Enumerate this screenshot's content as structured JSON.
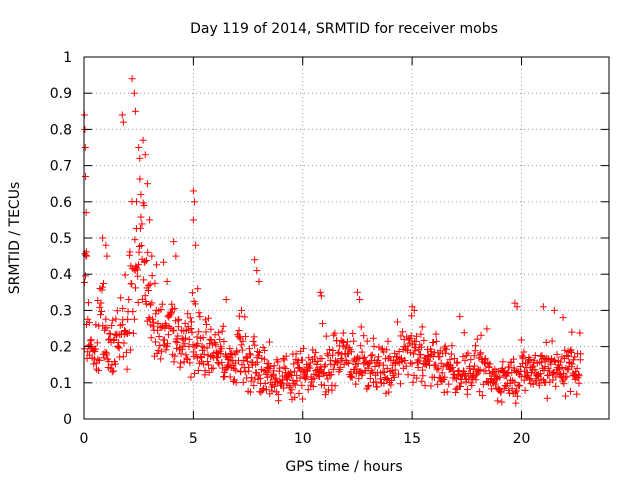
{
  "chart_data": {
    "type": "scatter",
    "title": "Day 119 of 2014, SRMTID for receiver mobs",
    "xlabel": "GPS time / hours",
    "ylabel": "SRMTID / TECUs",
    "xlim": [
      0,
      24
    ],
    "ylim": [
      0,
      1
    ],
    "xticks": [
      0,
      5,
      10,
      15,
      20
    ],
    "yticks": [
      0,
      0.1,
      0.2,
      0.3,
      0.4,
      0.5,
      0.6,
      0.7,
      0.8,
      0.9,
      1
    ],
    "xtick_labels": [
      "0",
      "5",
      "10",
      "15",
      "20"
    ],
    "ytick_labels": [
      "0",
      "0.1",
      "0.2",
      "0.3",
      "0.4",
      "0.5",
      "0.6",
      "0.7",
      "0.8",
      "0.9",
      "1"
    ],
    "grid": true,
    "marker": "+",
    "color": "#ff0000",
    "x_data_end": 22.7,
    "series": [
      {
        "name": "SRMTID",
        "envelope": [
          [
            0.0,
            0.15,
            0.06
          ],
          [
            0.05,
            0.6,
            0.2
          ],
          [
            0.15,
            0.22,
            0.06
          ],
          [
            0.4,
            0.16,
            0.04
          ],
          [
            0.8,
            0.3,
            0.12
          ],
          [
            1.2,
            0.2,
            0.06
          ],
          [
            1.7,
            0.22,
            0.06
          ],
          [
            2.2,
            0.35,
            0.15
          ],
          [
            2.6,
            0.5,
            0.18
          ],
          [
            3.0,
            0.3,
            0.08
          ],
          [
            3.5,
            0.25,
            0.06
          ],
          [
            4.0,
            0.24,
            0.06
          ],
          [
            4.5,
            0.2,
            0.06
          ],
          [
            5.0,
            0.22,
            0.08
          ],
          [
            5.5,
            0.18,
            0.05
          ],
          [
            6.0,
            0.18,
            0.05
          ],
          [
            6.5,
            0.15,
            0.05
          ],
          [
            7.0,
            0.17,
            0.06
          ],
          [
            7.8,
            0.15,
            0.06
          ],
          [
            8.5,
            0.12,
            0.04
          ],
          [
            9.0,
            0.11,
            0.04
          ],
          [
            10.0,
            0.13,
            0.05
          ],
          [
            11.0,
            0.14,
            0.05
          ],
          [
            12.0,
            0.17,
            0.05
          ],
          [
            13.0,
            0.14,
            0.05
          ],
          [
            14.0,
            0.13,
            0.05
          ],
          [
            15.0,
            0.19,
            0.06
          ],
          [
            16.0,
            0.15,
            0.05
          ],
          [
            17.0,
            0.13,
            0.05
          ],
          [
            18.0,
            0.14,
            0.05
          ],
          [
            19.0,
            0.1,
            0.04
          ],
          [
            20.0,
            0.13,
            0.05
          ],
          [
            21.0,
            0.14,
            0.05
          ],
          [
            22.0,
            0.14,
            0.05
          ],
          [
            22.7,
            0.14,
            0.05
          ]
        ],
        "spikes": [
          [
            0.02,
            0.84
          ],
          [
            0.04,
            0.8
          ],
          [
            0.06,
            0.75
          ],
          [
            0.07,
            0.67
          ],
          [
            0.1,
            0.57
          ],
          [
            0.12,
            0.45
          ],
          [
            2.2,
            0.94
          ],
          [
            2.3,
            0.9
          ],
          [
            1.75,
            0.84
          ],
          [
            1.8,
            0.82
          ],
          [
            2.35,
            0.85
          ],
          [
            2.5,
            0.75
          ],
          [
            2.55,
            0.72
          ],
          [
            2.7,
            0.77
          ],
          [
            2.8,
            0.73
          ],
          [
            2.9,
            0.65
          ],
          [
            3.0,
            0.55
          ],
          [
            2.4,
            0.6
          ],
          [
            2.6,
            0.62
          ],
          [
            3.1,
            0.45
          ],
          [
            0.85,
            0.5
          ],
          [
            1.0,
            0.48
          ],
          [
            1.05,
            0.45
          ],
          [
            5.0,
            0.63
          ],
          [
            5.05,
            0.6
          ],
          [
            5.0,
            0.55
          ],
          [
            5.1,
            0.48
          ],
          [
            4.1,
            0.49
          ],
          [
            4.2,
            0.45
          ],
          [
            5.2,
            0.36
          ],
          [
            7.8,
            0.44
          ],
          [
            7.9,
            0.41
          ],
          [
            8.0,
            0.38
          ],
          [
            10.8,
            0.35
          ],
          [
            10.85,
            0.34
          ],
          [
            12.5,
            0.35
          ],
          [
            12.6,
            0.33
          ],
          [
            15.0,
            0.31
          ],
          [
            15.1,
            0.3
          ],
          [
            19.7,
            0.32
          ],
          [
            19.8,
            0.31
          ],
          [
            21.0,
            0.31
          ],
          [
            21.5,
            0.3
          ],
          [
            21.9,
            0.28
          ],
          [
            22.3,
            0.24
          ],
          [
            6.5,
            0.33
          ],
          [
            7.2,
            0.3
          ],
          [
            3.8,
            0.38
          ]
        ]
      }
    ]
  }
}
